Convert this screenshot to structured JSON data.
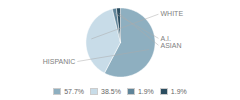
{
  "chart_data": {
    "type": "pie",
    "categories": [
      "HISPANIC",
      "WHITE",
      "A.I.",
      "ASIAN"
    ],
    "values": [
      57.7,
      38.5,
      1.9,
      1.9
    ],
    "value_labels": [
      "57.7%",
      "38.5%",
      "1.9%",
      "1.9%"
    ],
    "colors": [
      "#8eafc0",
      "#c8dce8",
      "#5f8499",
      "#2b4d60"
    ]
  }
}
